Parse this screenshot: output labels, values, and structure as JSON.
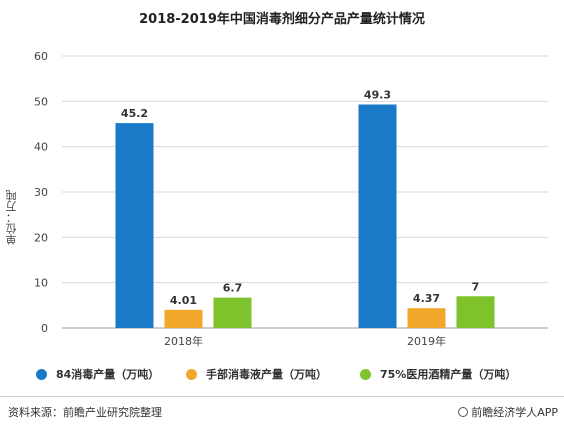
{
  "chart_data": {
    "type": "bar",
    "title": "2018-2019年中国消毒剂细分产品产量统计情况",
    "ylabel": "单位：万吨",
    "xlabel": "",
    "ylim": [
      0,
      60
    ],
    "yticks": [
      0,
      10,
      20,
      30,
      40,
      50,
      60
    ],
    "categories": [
      "2018年",
      "2019年"
    ],
    "series": [
      {
        "name": "84消毒产量（万吨）",
        "values": [
          45.2,
          49.3
        ],
        "labels": [
          "45.2",
          "49.3"
        ],
        "color": "#1a7ac7"
      },
      {
        "name": "手部消毒液产量（万吨）",
        "values": [
          4.01,
          4.37
        ],
        "labels": [
          "4.01",
          "4.37"
        ],
        "color": "#f0a72a"
      },
      {
        "name": "75%医用酒精产量（万吨）",
        "values": [
          6.7,
          7
        ],
        "labels": [
          "6.7",
          "7"
        ],
        "color": "#7ec22c"
      }
    ],
    "grid": true,
    "legend_position": "bottom"
  },
  "footer": {
    "source": "资料来源：前瞻产业研究院整理",
    "brand": "前瞻经济学人APP"
  }
}
